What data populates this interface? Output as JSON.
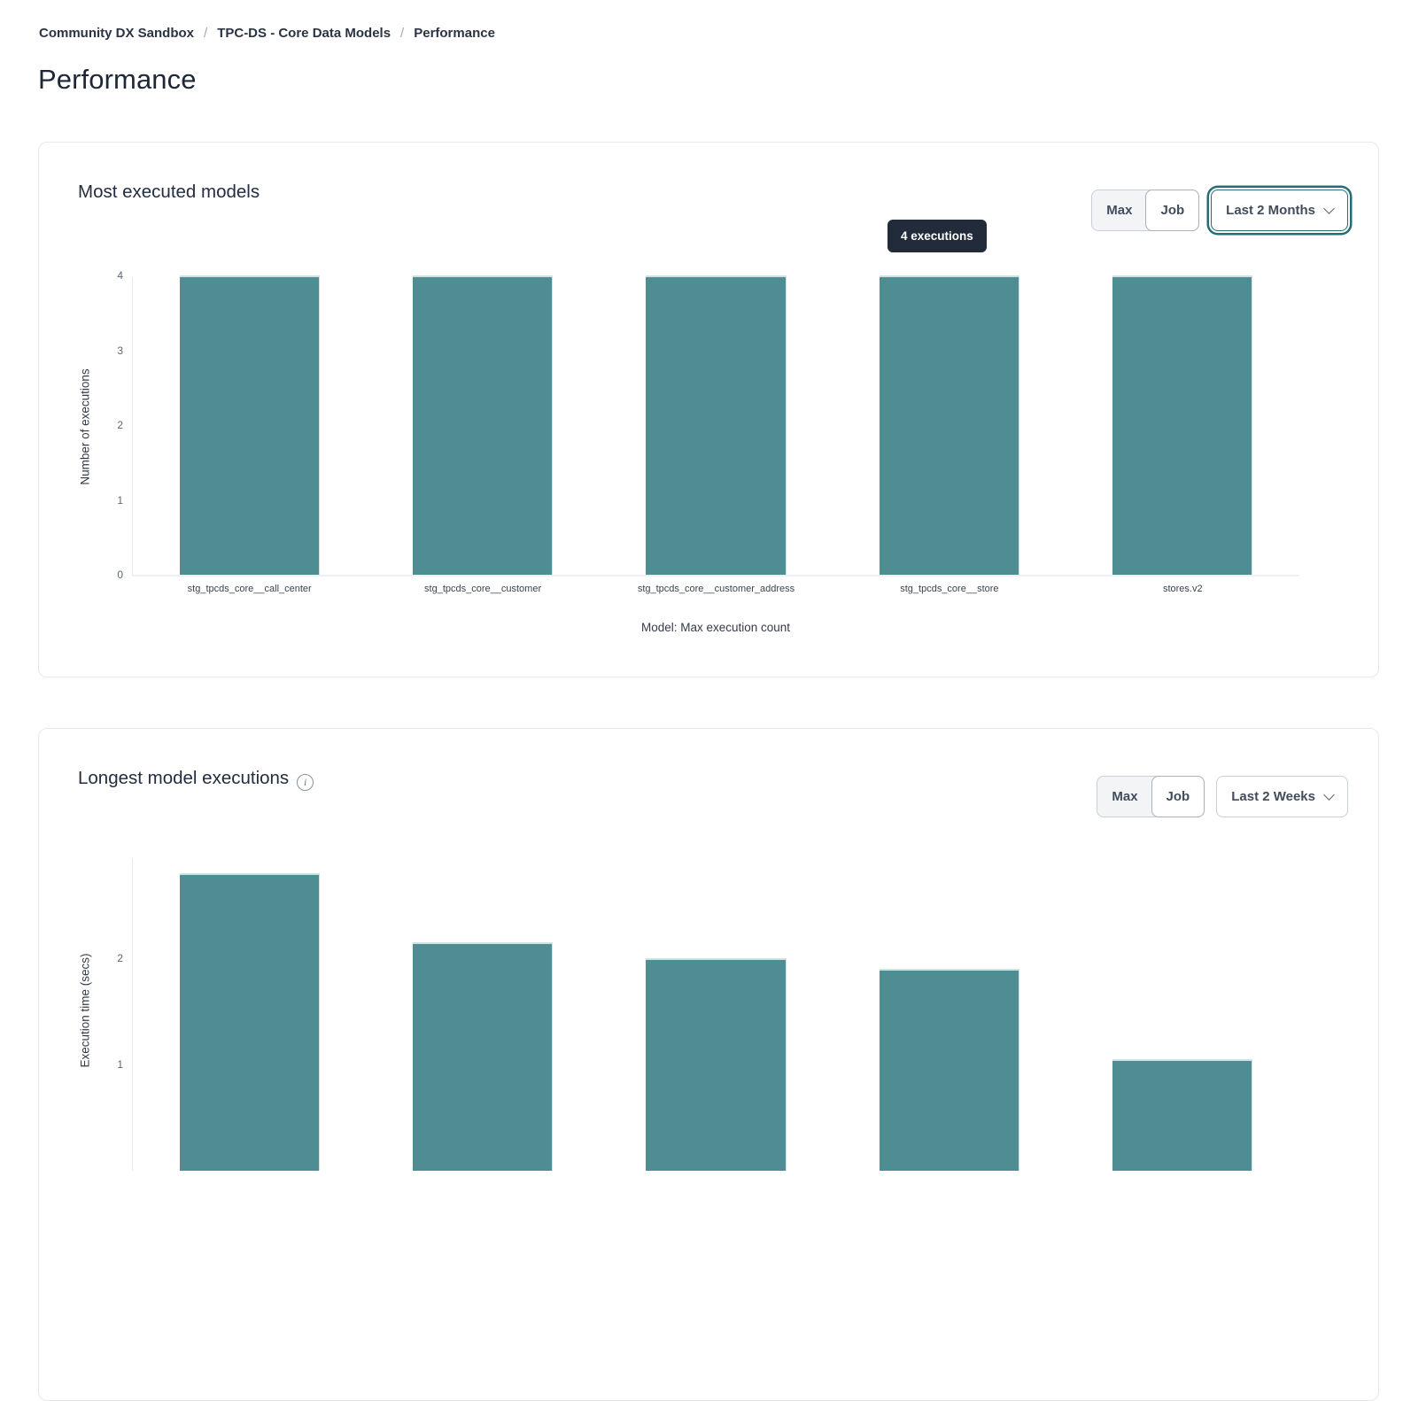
{
  "breadcrumb": {
    "separator": "/",
    "items": [
      "Community DX Sandbox",
      "TPC-DS - Core Data Models",
      "Performance"
    ]
  },
  "page_title": "Performance",
  "cards": [
    {
      "title": "Most executed models",
      "segmented": {
        "options": [
          "Max",
          "Job"
        ],
        "selected": "Job"
      },
      "dropdown": {
        "value": "Last 2 Months",
        "focused": true
      },
      "tooltip": {
        "text": "4 executions"
      }
    },
    {
      "title": "Longest model executions",
      "has_info_icon": true,
      "segmented": {
        "options": [
          "Max",
          "Job"
        ],
        "selected": "Job"
      },
      "dropdown": {
        "value": "Last 2 Weeks",
        "focused": false
      }
    }
  ],
  "chart_data": [
    {
      "type": "bar",
      "title": "Most executed models",
      "categories": [
        "stg_tpcds_core__call_center",
        "stg_tpcds_core__customer",
        "stg_tpcds_core__customer_address",
        "stg_tpcds_core__store",
        "stores.v2"
      ],
      "values": [
        4,
        4,
        4,
        4,
        4
      ],
      "xlabel": "Model: Max execution count",
      "ylabel": "Number of executions",
      "ylim": [
        0,
        4
      ],
      "yticks": [
        0,
        1,
        2,
        3,
        4
      ],
      "grid": false,
      "legend": "none",
      "bar_color": "#4e8d92",
      "annotation": {
        "text": "4 executions",
        "anchor_category": "stg_tpcds_core__store"
      }
    },
    {
      "type": "bar",
      "title": "Longest model executions",
      "categories": [
        "",
        "",
        "",
        "",
        ""
      ],
      "values": [
        2.8,
        2.15,
        2.0,
        1.9,
        1.05
      ],
      "xlabel": "",
      "ylabel": "Execution time (secs)",
      "ylim": [
        0,
        2.95
      ],
      "yticks": [
        1,
        2
      ],
      "grid": false,
      "legend": "none",
      "bar_color": "#4e8d92",
      "clipped_bottom": true
    }
  ],
  "colors": {
    "bar": "#4e8d92",
    "bar_cap": "#cfe1e2",
    "tooltip_bg": "#212b3a",
    "focus_ring": "#246d76",
    "heading_text": "#232d3f",
    "card_border": "#e5e8ec"
  }
}
